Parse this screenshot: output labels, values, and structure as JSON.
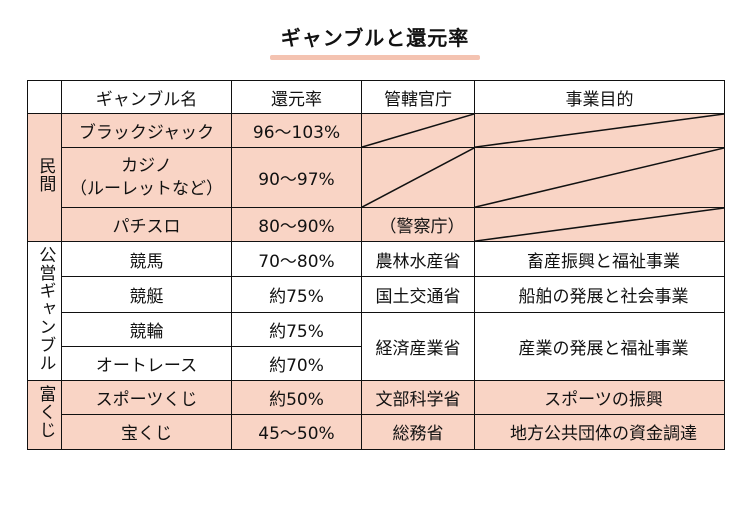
{
  "title": "ギャンブルと還元率",
  "headers": {
    "name": "ギャンブル名",
    "rate": "還元率",
    "agency": "管轄官庁",
    "purpose": "事業目的"
  },
  "groups": {
    "private": "民間",
    "public": "公営ギャンブル",
    "lottery": "富くじ"
  },
  "rows": [
    {
      "name": "ブラックジャック",
      "rate": "96〜103%",
      "agency": "",
      "purpose": ""
    },
    {
      "name": "カジノ",
      "name2": "（ルーレットなど）",
      "rate": "90〜97%",
      "agency": "",
      "purpose": ""
    },
    {
      "name": "パチスロ",
      "rate": "80〜90%",
      "agency": "（警察庁）",
      "purpose": ""
    },
    {
      "name": "競馬",
      "rate": "70〜80%",
      "agency": "農林水産省",
      "purpose": "畜産振興と福祉事業"
    },
    {
      "name": "競艇",
      "rate": "約75%",
      "agency": "国土交通省",
      "purpose": "船舶の発展と社会事業"
    },
    {
      "name": "競輪",
      "rate": "約75%",
      "agency": "経済産業省",
      "purpose": "産業の発展と福祉事業"
    },
    {
      "name": "オートレース",
      "rate": "約70%",
      "agency": "",
      "purpose": ""
    },
    {
      "name": "スポーツくじ",
      "rate": "約50%",
      "agency": "文部科学省",
      "purpose": "スポーツの振興"
    },
    {
      "name": "宝くじ",
      "rate": "45〜50%",
      "agency": "総務省",
      "purpose": "地方公共団体の資金調達"
    }
  ],
  "colors": {
    "highlight": "#f9d4c5",
    "border": "#111111"
  }
}
